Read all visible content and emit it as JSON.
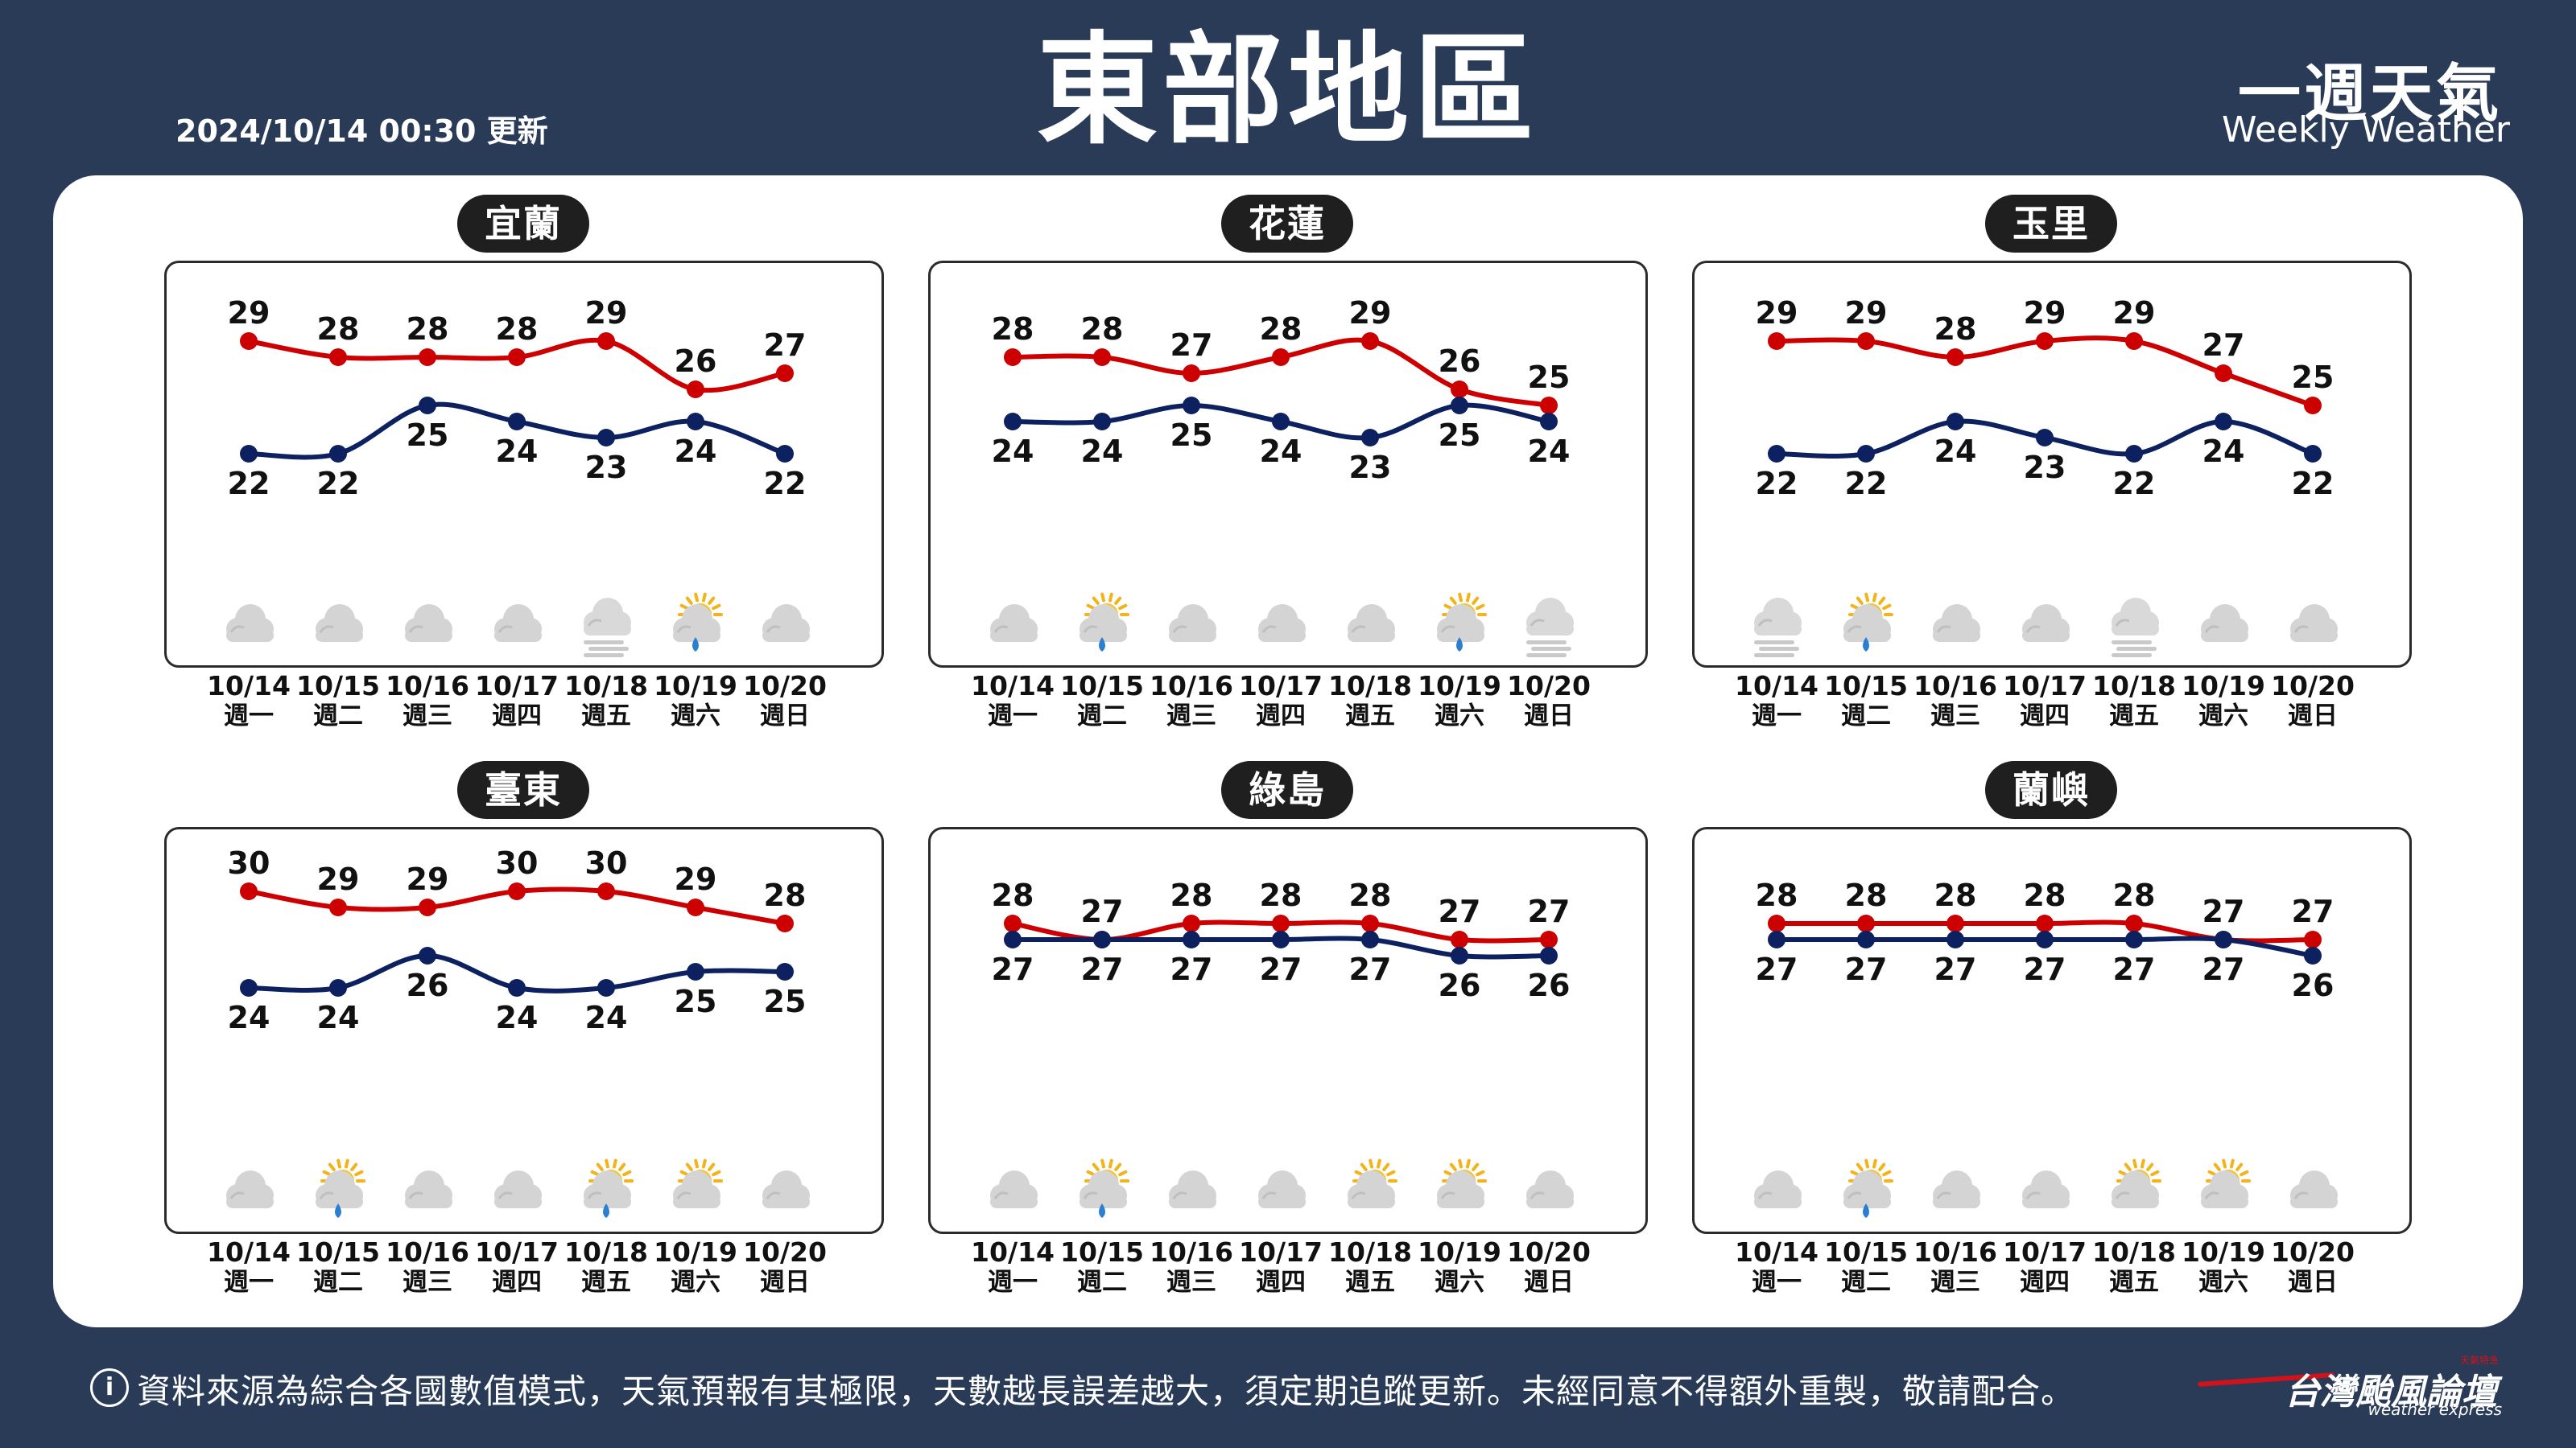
{
  "header": {
    "updated": "2024/10/14 00:30 更新",
    "title": "東部地區",
    "brand_zh": "一週天氣",
    "brand_en": "Weekly Weather"
  },
  "footer": {
    "note": "資料來源為綜合各國數值模式，天氣預報有其極限，天數越長誤差越大，須定期追蹤更新。未經同意不得額外重製，敬請配合。",
    "info_icon": "i",
    "logo": "台灣颱風論壇",
    "logo_sub": "weather express",
    "logo_mark": "天氣特急"
  },
  "colors": {
    "background": "#2a3b58",
    "high_line": "#cc0000",
    "low_line": "#0d2160"
  },
  "days": [
    {
      "date": "10/14",
      "weekday": "週一"
    },
    {
      "date": "10/15",
      "weekday": "週二"
    },
    {
      "date": "10/16",
      "weekday": "週三"
    },
    {
      "date": "10/17",
      "weekday": "週四"
    },
    {
      "date": "10/18",
      "weekday": "週五"
    },
    {
      "date": "10/19",
      "weekday": "週六"
    },
    {
      "date": "10/20",
      "weekday": "週日"
    }
  ],
  "chart_data": [
    {
      "type": "line",
      "title": "宜蘭",
      "categories": [
        "10/14",
        "10/15",
        "10/16",
        "10/17",
        "10/18",
        "10/19",
        "10/20"
      ],
      "series": [
        {
          "values": [
            29,
            28,
            28,
            28,
            29,
            26,
            27
          ]
        },
        {
          "values": [
            22,
            22,
            25,
            24,
            23,
            24,
            22
          ]
        }
      ],
      "icons": [
        "cloudy-icon",
        "cloudy-icon",
        "cloudy-icon",
        "cloudy-icon",
        "fog-icon",
        "sun-cloud-rain-icon",
        "cloudy-icon"
      ]
    },
    {
      "type": "line",
      "title": "花蓮",
      "categories": [
        "10/14",
        "10/15",
        "10/16",
        "10/17",
        "10/18",
        "10/19",
        "10/20"
      ],
      "series": [
        {
          "values": [
            28,
            28,
            27,
            28,
            29,
            26,
            25
          ]
        },
        {
          "values": [
            24,
            24,
            25,
            24,
            23,
            25,
            24
          ]
        }
      ],
      "icons": [
        "cloudy-icon",
        "sun-cloud-rain-icon",
        "cloudy-icon",
        "cloudy-icon",
        "cloudy-icon",
        "sun-cloud-rain-icon",
        "fog-icon"
      ]
    },
    {
      "type": "line",
      "title": "玉里",
      "categories": [
        "10/14",
        "10/15",
        "10/16",
        "10/17",
        "10/18",
        "10/19",
        "10/20"
      ],
      "series": [
        {
          "values": [
            29,
            29,
            28,
            29,
            29,
            27,
            25
          ]
        },
        {
          "values": [
            22,
            22,
            24,
            23,
            22,
            24,
            22
          ]
        }
      ],
      "icons": [
        "fog-icon",
        "sun-cloud-rain-icon",
        "cloudy-icon",
        "cloudy-icon",
        "fog-icon",
        "cloudy-icon",
        "cloudy-icon"
      ]
    },
    {
      "type": "line",
      "title": "臺東",
      "categories": [
        "10/14",
        "10/15",
        "10/16",
        "10/17",
        "10/18",
        "10/19",
        "10/20"
      ],
      "series": [
        {
          "values": [
            30,
            29,
            29,
            30,
            30,
            29,
            28
          ]
        },
        {
          "values": [
            24,
            24,
            26,
            24,
            24,
            25,
            25
          ]
        }
      ],
      "icons": [
        "cloudy-icon",
        "sun-cloud-rain-icon",
        "cloudy-icon",
        "cloudy-icon",
        "sun-cloud-rain-icon",
        "sun-cloud-icon",
        "cloudy-icon"
      ]
    },
    {
      "type": "line",
      "title": "綠島",
      "categories": [
        "10/14",
        "10/15",
        "10/16",
        "10/17",
        "10/18",
        "10/19",
        "10/20"
      ],
      "series": [
        {
          "values": [
            28,
            27,
            28,
            28,
            28,
            27,
            27
          ]
        },
        {
          "values": [
            27,
            27,
            27,
            27,
            27,
            26,
            26
          ]
        }
      ],
      "icons": [
        "cloudy-icon",
        "sun-cloud-rain-icon",
        "cloudy-icon",
        "cloudy-icon",
        "sun-cloud-icon",
        "sun-cloud-icon",
        "cloudy-icon"
      ]
    },
    {
      "type": "line",
      "title": "蘭嶼",
      "categories": [
        "10/14",
        "10/15",
        "10/16",
        "10/17",
        "10/18",
        "10/19",
        "10/20"
      ],
      "series": [
        {
          "values": [
            28,
            28,
            28,
            28,
            28,
            27,
            27
          ]
        },
        {
          "values": [
            27,
            27,
            27,
            27,
            27,
            27,
            26
          ]
        }
      ],
      "icons": [
        "cloudy-icon",
        "sun-cloud-rain-icon",
        "cloudy-icon",
        "cloudy-icon",
        "sun-cloud-icon",
        "sun-cloud-icon",
        "cloudy-icon"
      ]
    }
  ]
}
